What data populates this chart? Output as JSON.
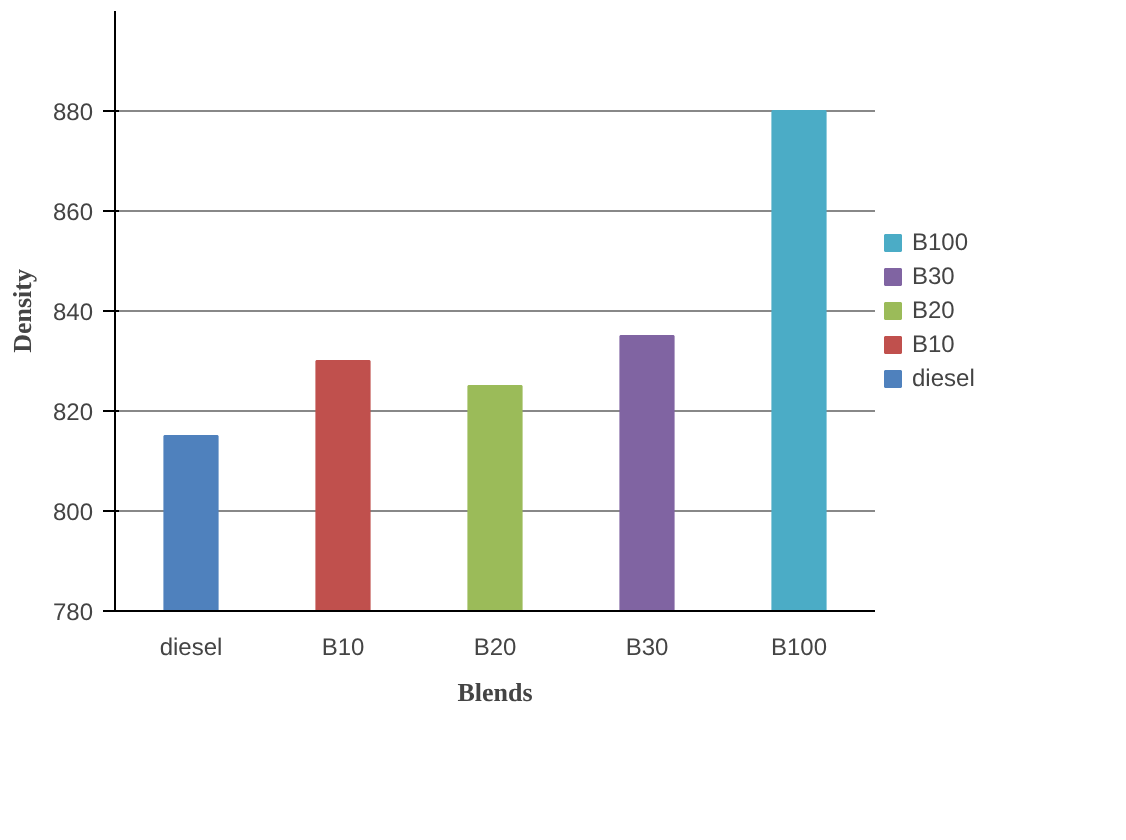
{
  "chart_data": {
    "type": "bar",
    "xlabel": "Blends",
    "ylabel": "Density",
    "categories": [
      "diesel",
      "B10",
      "B20",
      "B30",
      "B100"
    ],
    "series": [
      {
        "name": "diesel",
        "color": "#4f81bd",
        "values": [
          815,
          null,
          null,
          null,
          null
        ]
      },
      {
        "name": "B10",
        "color": "#c0504d",
        "values": [
          null,
          830,
          null,
          null,
          null
        ]
      },
      {
        "name": "B20",
        "color": "#9bbb59",
        "values": [
          null,
          null,
          825,
          null,
          null
        ]
      },
      {
        "name": "B30",
        "color": "#8064a2",
        "values": [
          null,
          null,
          null,
          835,
          null
        ]
      },
      {
        "name": "B100",
        "color": "#4bacc6",
        "values": [
          null,
          null,
          null,
          null,
          880
        ]
      }
    ],
    "ylim": [
      780,
      900
    ],
    "yticks": [
      780,
      800,
      820,
      840,
      860,
      880
    ],
    "grid": "y",
    "legend": "right"
  }
}
